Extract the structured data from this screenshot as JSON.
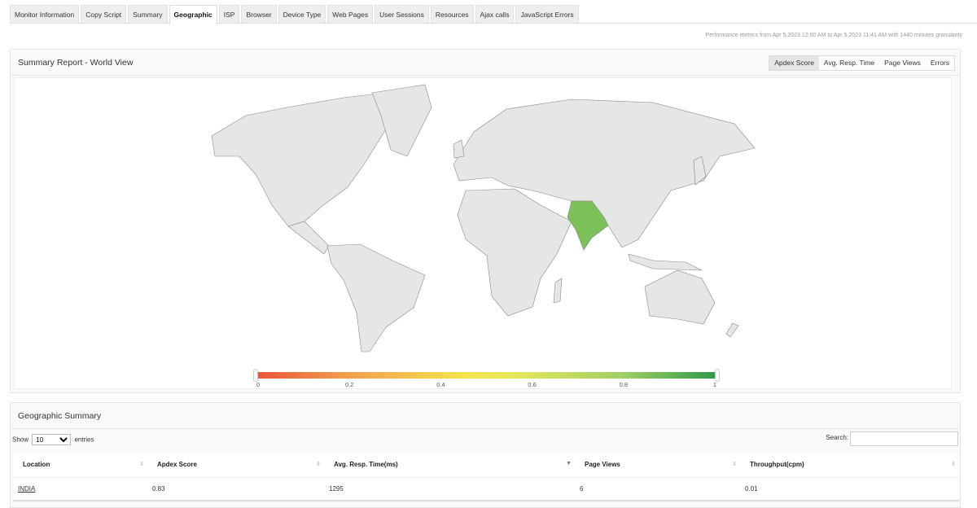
{
  "tabs": [
    "Monitor Information",
    "Copy Script",
    "Summary",
    "Geographic",
    "ISP",
    "Browser",
    "Device Type",
    "Web Pages",
    "User Sessions",
    "Resources",
    "Ajax calls",
    "JavaScript Errors"
  ],
  "active_tab": "Geographic",
  "perf_text": "Performance metrics from Apr 5,2023 12:00 AM to Apr 5,2023 11:41 AM with 1440 minutes granularity",
  "world": {
    "title": "Summary Report - World View",
    "metrics": [
      "Apdex Score",
      "Avg. Resp. Time",
      "Page Views",
      "Errors"
    ],
    "selected_metric": "Apdex Score",
    "highlighted_country": "India",
    "highlight_color": "#7cc05a",
    "land_color": "#e6e6e6",
    "legend_ticks": [
      "0",
      "0.2",
      "0.4",
      "0.6",
      "0.8",
      "1"
    ],
    "legend_colors": [
      "#e8553a",
      "#f5e24c",
      "#2f9a4a"
    ]
  },
  "summary": {
    "title": "Geographic Summary",
    "show_label": "Show",
    "entries_value": "10",
    "entries_label": "entries",
    "search_label": "Search:",
    "columns": [
      "Location",
      "Apdex Score",
      "Avg. Resp. Time(ms)",
      "Page Views",
      "Throughput(cpm)"
    ],
    "rows": [
      [
        "INDIA",
        "0.83",
        "1295",
        "6",
        "0.01"
      ]
    ]
  }
}
